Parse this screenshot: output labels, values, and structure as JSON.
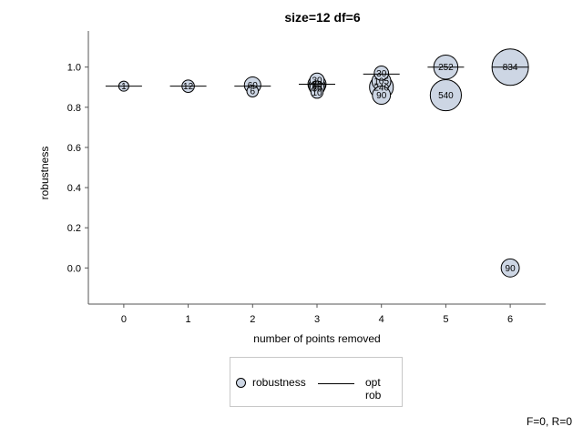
{
  "chart_data": {
    "type": "scatter",
    "title": "size=12 df=6",
    "xlabel": "number of points removed",
    "ylabel": "robustness",
    "xlim": [
      -0.55,
      6.55
    ],
    "ylim": [
      -0.18,
      1.18
    ],
    "xticks": [
      "0",
      "1",
      "2",
      "3",
      "4",
      "5",
      "6"
    ],
    "yticks": [
      "0.0",
      "0.2",
      "0.4",
      "0.6",
      "0.8",
      "1.0"
    ],
    "series": [
      {
        "name": "robustness",
        "points": [
          {
            "x": 0,
            "y": 0.905,
            "count": "1"
          },
          {
            "x": 1,
            "y": 0.905,
            "count": "12"
          },
          {
            "x": 2,
            "y": 0.91,
            "count": "60"
          },
          {
            "x": 2,
            "y": 0.88,
            "count": "6"
          },
          {
            "x": 3,
            "y": 0.935,
            "count": "30"
          },
          {
            "x": 3,
            "y": 0.915,
            "count": "90"
          },
          {
            "x": 3,
            "y": 0.905,
            "count": "60"
          },
          {
            "x": 3,
            "y": 0.895,
            "count": "30"
          },
          {
            "x": 3,
            "y": 0.875,
            "count": "10"
          },
          {
            "x": 4,
            "y": 0.97,
            "count": "30"
          },
          {
            "x": 4,
            "y": 0.93,
            "count": "105"
          },
          {
            "x": 4,
            "y": 0.9,
            "count": "240"
          },
          {
            "x": 4,
            "y": 0.86,
            "count": "90"
          },
          {
            "x": 5,
            "y": 1.0,
            "count": "252"
          },
          {
            "x": 5,
            "y": 0.86,
            "count": "540"
          },
          {
            "x": 6,
            "y": 1.0,
            "count": "834"
          },
          {
            "x": 6,
            "y": 0.0,
            "count": "90"
          }
        ]
      },
      {
        "name": "opt rob",
        "points": [
          {
            "x": 0,
            "y": 0.905
          },
          {
            "x": 1,
            "y": 0.905
          },
          {
            "x": 2,
            "y": 0.905
          },
          {
            "x": 3,
            "y": 0.915
          },
          {
            "x": 4,
            "y": 0.965
          },
          {
            "x": 5,
            "y": 1.0
          },
          {
            "x": 6,
            "y": 1.0
          }
        ]
      }
    ],
    "legend_position": "bottom-center"
  },
  "legend": {
    "robustness_label": "robustness",
    "optrob_label": "opt rob"
  },
  "footer": "F=0, R=0",
  "colors": {
    "marker_fill": "#cdd6e4",
    "marker_edge": "#000000",
    "axis": "#555555"
  }
}
